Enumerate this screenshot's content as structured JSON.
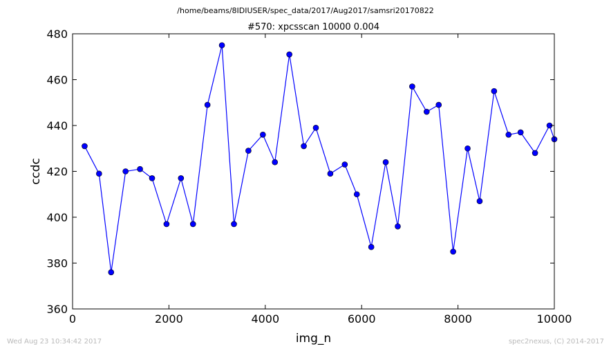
{
  "suptitle": "/home/beams/8IDIUSER/spec_data/2017/Aug2017/samsri20170822",
  "footer": {
    "left": "Wed Aug 23 10:34:42 2017",
    "right": "spec2nexus, (C) 2014-2017"
  },
  "colors": {
    "series": "#0000ff",
    "axis": "#000000",
    "footer": "#b9b9b9"
  },
  "chart_data": {
    "type": "line",
    "title": "#570: xpcsscan 10000 0.004",
    "xlabel": "img_n",
    "ylabel": "ccdc",
    "xlim": [
      0,
      10000
    ],
    "ylim": [
      360,
      480
    ],
    "xticks": [
      0,
      2000,
      4000,
      6000,
      8000,
      10000
    ],
    "yticks": [
      360,
      380,
      400,
      420,
      440,
      460,
      480
    ],
    "grid": false,
    "markers": "circle",
    "x": [
      250,
      550,
      800,
      1100,
      1400,
      1650,
      1950,
      2250,
      2500,
      2800,
      3100,
      3350,
      3650,
      3950,
      4200,
      4500,
      4800,
      5050,
      5350,
      5650,
      5900,
      6200,
      6500,
      6750,
      7050,
      7350,
      7600,
      7900,
      8200,
      8450,
      8750,
      9050,
      9300,
      9600,
      9900,
      10000
    ],
    "y": [
      431,
      419,
      376,
      420,
      421,
      417,
      397,
      417,
      397,
      449,
      475,
      397,
      429,
      436,
      424,
      471,
      431,
      439,
      419,
      423,
      410,
      387,
      424,
      396,
      457,
      446,
      449,
      385,
      430,
      407,
      455,
      436,
      437,
      428,
      440,
      434
    ]
  }
}
